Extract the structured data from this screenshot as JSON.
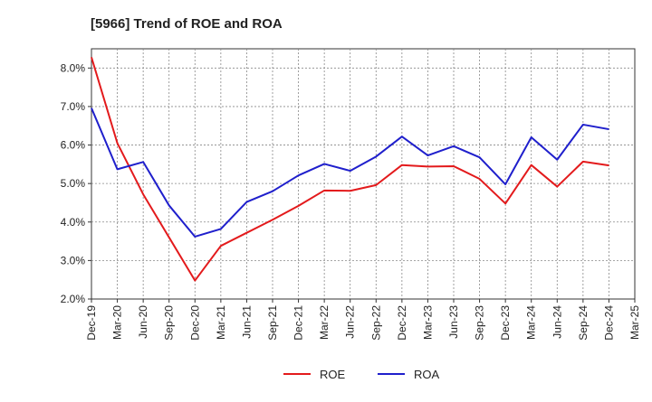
{
  "chart_data": {
    "type": "line",
    "title": "[5966]  Trend of ROE and ROA",
    "xlabel": "",
    "ylabel": "",
    "categories": [
      "Dec-19",
      "Mar-20",
      "Jun-20",
      "Sep-20",
      "Dec-20",
      "Mar-21",
      "Jun-21",
      "Sep-21",
      "Dec-21",
      "Mar-22",
      "Jun-22",
      "Sep-22",
      "Dec-22",
      "Mar-23",
      "Jun-23",
      "Sep-23",
      "Dec-23",
      "Mar-24",
      "Jun-24",
      "Sep-24",
      "Dec-24",
      "Mar-25"
    ],
    "ylim": [
      2.0,
      8.5
    ],
    "yticks": [
      2.0,
      3.0,
      4.0,
      5.0,
      6.0,
      7.0,
      8.0
    ],
    "ytick_labels": [
      "2.0%",
      "3.0%",
      "4.0%",
      "5.0%",
      "6.0%",
      "7.0%",
      "8.0%"
    ],
    "grid": true,
    "legend_position": "bottom-center",
    "series": [
      {
        "name": "ROE",
        "color": "#e31a1c",
        "values": [
          8.28,
          6.05,
          4.72,
          3.6,
          2.48,
          3.38,
          3.72,
          4.06,
          4.42,
          4.82,
          4.81,
          4.96,
          5.48,
          5.44,
          5.45,
          5.12,
          4.48,
          5.48,
          4.92,
          5.57,
          5.47,
          null
        ]
      },
      {
        "name": "ROA",
        "color": "#1f1fcc",
        "values": [
          6.96,
          5.37,
          5.56,
          4.43,
          3.62,
          3.82,
          4.52,
          4.8,
          5.21,
          5.51,
          5.33,
          5.7,
          6.22,
          5.73,
          5.97,
          5.68,
          4.98,
          6.2,
          5.62,
          6.53,
          6.41,
          null
        ]
      }
    ]
  }
}
